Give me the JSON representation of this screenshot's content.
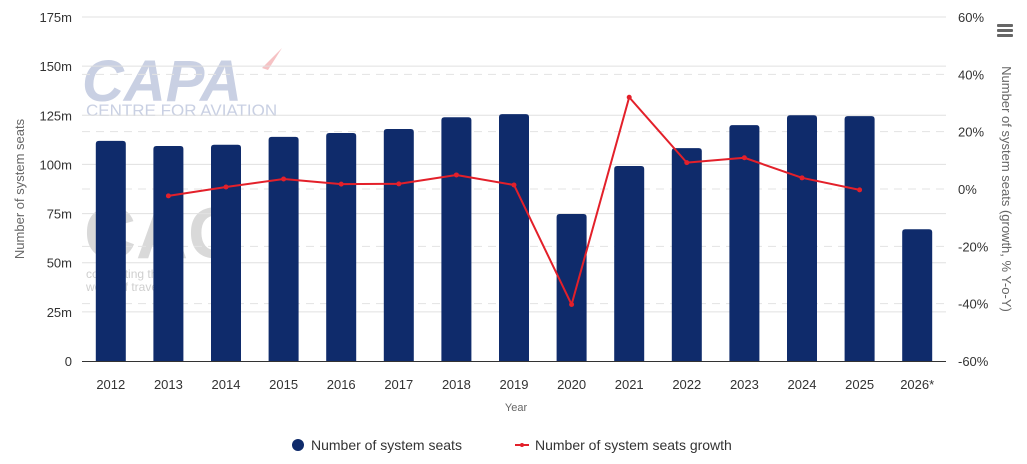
{
  "chart_data": {
    "type": "bar+line",
    "title": "",
    "categories": [
      "2012",
      "2013",
      "2014",
      "2015",
      "2016",
      "2017",
      "2018",
      "2019",
      "2020",
      "2021",
      "2022",
      "2023",
      "2024",
      "2025",
      "2026*"
    ],
    "xlabel": "Year",
    "ylabel_left": "Number of system seats",
    "ylabel_right": "Number of system seats (growth, % Y-o-Y)",
    "ylim_left": [
      0,
      175
    ],
    "ylim_right": [
      -60,
      60
    ],
    "yticks_left": [
      0,
      25,
      50,
      75,
      100,
      125,
      150,
      175
    ],
    "yticks_left_labels": [
      "0",
      "25m",
      "50m",
      "75m",
      "100m",
      "125m",
      "150m",
      "175m"
    ],
    "yticks_right": [
      -60,
      -40,
      -20,
      0,
      20,
      40,
      60
    ],
    "yticks_right_labels": [
      "-60%",
      "-40%",
      "-20%",
      "0%",
      "20%",
      "40%",
      "60%"
    ],
    "grid": true,
    "legend_position": "bottom-center",
    "series": [
      {
        "name": "Number of system seats",
        "type": "bar",
        "axis": "left",
        "unit": "millions",
        "color": "#0f2b6b",
        "values": [
          112,
          109.4,
          110,
          114,
          116,
          118,
          124,
          125.6,
          74.8,
          99.2,
          108.3,
          120,
          125,
          124.6,
          67
        ]
      },
      {
        "name": "Number of system seats growth",
        "type": "line",
        "axis": "right",
        "unit": "percent",
        "color": "#e3202a",
        "values": [
          null,
          -2.4,
          0.7,
          3.5,
          1.7,
          1.8,
          4.9,
          1.4,
          -40.3,
          32,
          9.2,
          10.9,
          3.9,
          -0.3,
          null
        ]
      }
    ]
  },
  "watermark": {
    "capa_logo": "CAPA",
    "capa_tagline": "CENTRE FOR AVIATION",
    "cag_logo": "CAG",
    "cag_tagline_1": "connecting the",
    "cag_tagline_2": "world of travel"
  },
  "menu": {
    "icon": "hamburger-menu-icon"
  }
}
